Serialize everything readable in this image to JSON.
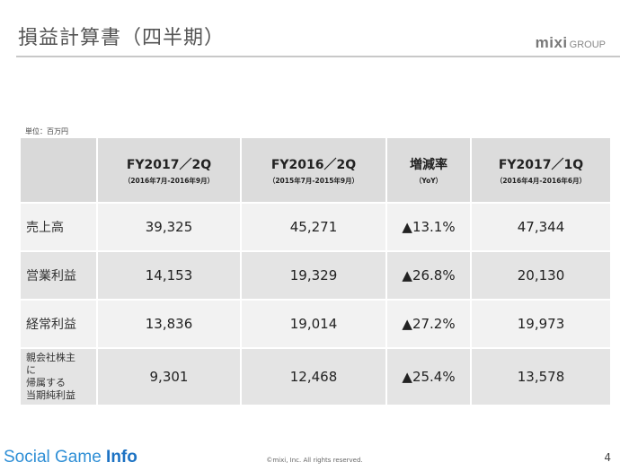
{
  "header": {
    "title": "損益計算書（四半期）",
    "logo_main": "mixi",
    "logo_sub": "GROUP"
  },
  "unit_note": "単位：百万円",
  "table": {
    "columns": [
      {
        "main": "FY2017／2Q",
        "sub": "（2016年7月-2016年9月）"
      },
      {
        "main": "FY2016／2Q",
        "sub": "（2015年7月-2015年9月）"
      },
      {
        "main": "増減率",
        "sub": "（YoY）"
      },
      {
        "main": "FY2017／1Q",
        "sub": "（2016年4月-2016年6月）"
      }
    ],
    "rows": [
      {
        "label": "売上高",
        "values": [
          "39,325",
          "45,271",
          "▲13.1%",
          "47,344"
        ]
      },
      {
        "label": "営業利益",
        "values": [
          "14,153",
          "19,329",
          "▲26.8%",
          "20,130"
        ]
      },
      {
        "label": "経常利益",
        "values": [
          "13,836",
          "19,014",
          "▲27.2%",
          "19,973"
        ]
      },
      {
        "label_lines": [
          "親会社株主",
          "に",
          "帰属する",
          "当期純利益"
        ],
        "values": [
          "9,301",
          "12,468",
          "▲25.4%",
          "13,578"
        ]
      }
    ]
  },
  "footer": {
    "brand_light": "Social Game ",
    "brand_bold": "Info",
    "copyright": "©mixi, Inc. All rights reserved.",
    "page_number": "4"
  }
}
